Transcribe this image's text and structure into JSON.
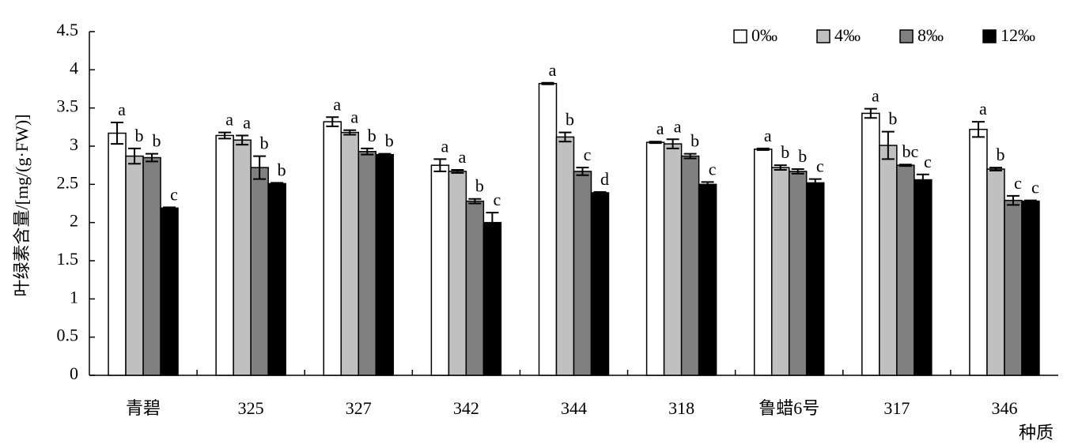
{
  "chart_data": {
    "type": "bar",
    "y_label": "叶绿素含量/[mg/(g·FW)]",
    "x_label": "种质",
    "categories": [
      "青碧",
      "325",
      "327",
      "342",
      "344",
      "318",
      "鲁蜡6号",
      "317",
      "346"
    ],
    "series": [
      {
        "name": "0‰",
        "color": "#ffffff",
        "values": [
          3.17,
          3.14,
          3.32,
          2.75,
          3.82,
          3.05,
          2.96,
          3.43,
          3.22
        ],
        "errors": [
          0.14,
          0.04,
          0.06,
          0.08,
          0.01,
          0.01,
          0.01,
          0.06,
          0.1
        ],
        "letters": [
          "a",
          "a",
          "a",
          "a",
          "a",
          "a",
          "a",
          "a",
          "a"
        ]
      },
      {
        "name": "4‰",
        "color": "#c0c0c0",
        "values": [
          2.87,
          3.08,
          3.18,
          2.67,
          3.12,
          3.03,
          2.72,
          3.01,
          2.7
        ],
        "errors": [
          0.1,
          0.06,
          0.03,
          0.02,
          0.06,
          0.06,
          0.03,
          0.18,
          0.02
        ],
        "letters": [
          "b",
          "a",
          "a",
          "a",
          "b",
          "a",
          "b",
          "b",
          "b"
        ]
      },
      {
        "name": "8‰",
        "color": "#808080",
        "values": [
          2.85,
          2.72,
          2.93,
          2.28,
          2.67,
          2.87,
          2.67,
          2.75,
          2.29
        ],
        "errors": [
          0.05,
          0.15,
          0.04,
          0.03,
          0.05,
          0.03,
          0.03,
          0.01,
          0.06
        ],
        "letters": [
          "b",
          "b",
          "b",
          "b",
          "c",
          "b",
          "b",
          "bc",
          "c"
        ]
      },
      {
        "name": "12‰",
        "color": "#000000",
        "values": [
          2.19,
          2.51,
          2.89,
          2.0,
          2.39,
          2.5,
          2.52,
          2.56,
          2.28
        ],
        "errors": [
          0.01,
          0.01,
          0.01,
          0.13,
          0.01,
          0.03,
          0.05,
          0.07,
          0.01
        ],
        "letters": [
          "c",
          "b",
          "b",
          "c",
          "d",
          "c",
          "c",
          "c",
          "c"
        ]
      }
    ],
    "ylim": [
      0,
      4.5
    ],
    "yticks": [
      0,
      0.5,
      1,
      1.5,
      2,
      2.5,
      3,
      3.5,
      4,
      4.5
    ],
    "grid": false,
    "legend": "top-right"
  }
}
